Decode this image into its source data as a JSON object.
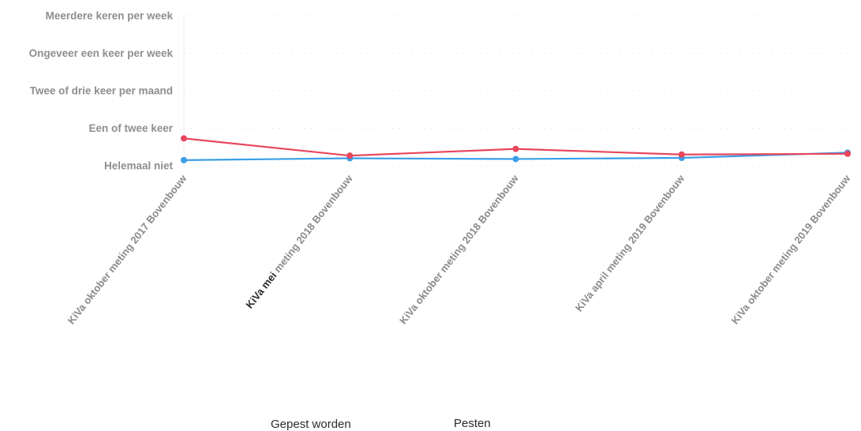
{
  "chart_data": {
    "type": "line",
    "categories": [
      "KiVa oktober meting 2017 Bovenbouw",
      "KiVa mei meting 2018 Bovenbouw",
      "KiVa oktober meting 2018 Bovenbouw",
      "KiVa april meting 2019 Bovenbouw",
      "KiVa oktober meting 2019 Bovenbouw"
    ],
    "category_label_parts": [
      [
        "",
        "KiVa oktober meting 2017 Bovenbouw"
      ],
      [
        "KiVa mei",
        " meting 2018 Bovenbouw"
      ],
      [
        "",
        "KiVa oktober meting 2018 Bovenbouw"
      ],
      [
        "",
        "KiVa april meting 2019 Bovenbouw"
      ],
      [
        "",
        "KiVa oktober meting 2019 Bovenbouw"
      ]
    ],
    "y_tick_labels": [
      "Helemaal niet",
      "Een of twee keer",
      "Twee of drie keer per maand",
      "Ongeveer een keer per week",
      "Meerdere keren per week"
    ],
    "ylim": [
      0,
      4
    ],
    "series": [
      {
        "name": "Gepest worden",
        "color": "#e8465b",
        "values": [
          0.73,
          0.27,
          0.45,
          0.3,
          0.32
        ]
      },
      {
        "name": "Pesten",
        "color": "#3a9ee8",
        "values": [
          0.15,
          0.2,
          0.18,
          0.21,
          0.35
        ]
      }
    ],
    "legend_position": "bottom",
    "grid": true
  },
  "legend": {
    "items": [
      "Gepest worden",
      "Pesten"
    ]
  }
}
